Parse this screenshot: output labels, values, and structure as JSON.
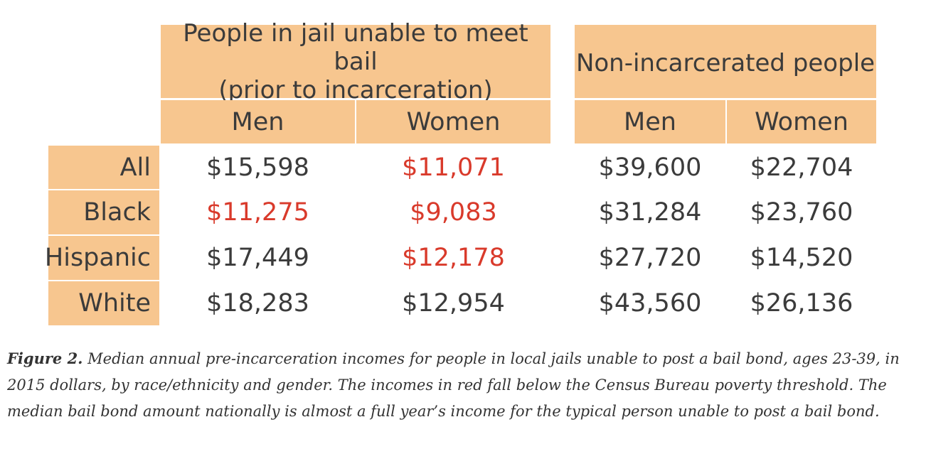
{
  "chart_data": {
    "type": "table",
    "groups": [
      {
        "label_line1": "People in jail unable to meet bail",
        "label_line2": "(prior to incarceration)"
      },
      {
        "label_line1": "Non-incarcerated people"
      }
    ],
    "columns": [
      "Men",
      "Women",
      "Men",
      "Women"
    ],
    "rows": [
      {
        "label": "All",
        "values": [
          "$15,598",
          "$11,071",
          "$39,600",
          "$22,704"
        ],
        "below_poverty": [
          false,
          true,
          false,
          false
        ]
      },
      {
        "label": "Black",
        "values": [
          "$11,275",
          "$9,083",
          "$31,284",
          "$23,760"
        ],
        "below_poverty": [
          true,
          true,
          false,
          false
        ]
      },
      {
        "label": "Hispanic",
        "values": [
          "$17,449",
          "$12,178",
          "$27,720",
          "$14,520"
        ],
        "below_poverty": [
          false,
          true,
          false,
          false
        ]
      },
      {
        "label": "White",
        "values": [
          "$18,283",
          "$12,954",
          "$43,560",
          "$26,136"
        ],
        "below_poverty": [
          false,
          false,
          false,
          false
        ]
      }
    ],
    "colors": {
      "header_bg": "#f7c68f",
      "text": "#3b3b3b",
      "highlight": "#d93a2b"
    }
  },
  "caption": {
    "bold": "Figure 2.",
    "text": " Median annual pre-incarceration incomes for people in local jails unable to post a bail bond, ages 23-39, in 2015 dollars, by race/ethnicity and gender. The incomes in red fall below the Census Bureau poverty threshold. The median bail bond amount nationally is almost a full year’s income for the typical person unable to post a bail bond."
  }
}
